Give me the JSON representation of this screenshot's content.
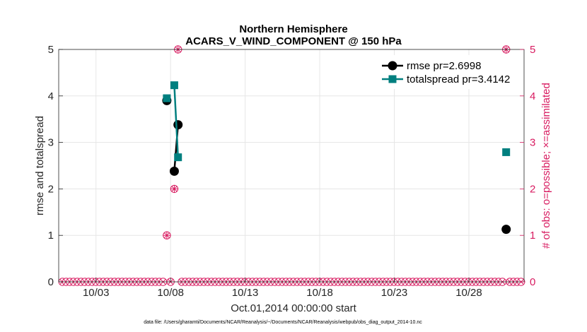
{
  "chart_data": {
    "type": "line",
    "title": [
      "Northern Hemisphere",
      "ACARS_V_WIND_COMPONENT @ 150 hPa"
    ],
    "xlabel": "Oct.01,2014 00:00:00 start",
    "ylabel": "rmse and totalspread",
    "y2label": "# of obs: o=possible; ×=assimilated",
    "footer": "data file: /Users/gharamti/Documents/NCAR/Reanalysis/~/Documents/NCAR/Reanalysis/webpub/obs_diag_output_2014-10.nc",
    "xlim": [
      0.5,
      31.7
    ],
    "ylim": [
      0,
      5
    ],
    "y2lim": [
      0,
      5
    ],
    "x_ticks": [
      3,
      8,
      13,
      18,
      23,
      28
    ],
    "x_tick_labels": [
      "10/03",
      "10/08",
      "10/13",
      "10/18",
      "10/23",
      "10/28"
    ],
    "y_ticks": [
      0,
      1,
      2,
      3,
      4,
      5
    ],
    "grid": true,
    "legend_position": "top-right",
    "series": [
      {
        "name": "rmse pr=2.6998",
        "color": "#000000",
        "marker": "circle",
        "segments": [
          [
            [
              7.75,
              3.9
            ]
          ],
          [
            [
              8.25,
              2.38
            ],
            [
              8.5,
              3.38
            ]
          ],
          [
            [
              30.5,
              1.13
            ]
          ]
        ]
      },
      {
        "name": "totalspread pr=3.4142",
        "color": "#007f7f",
        "marker": "square",
        "segments": [
          [
            [
              7.75,
              3.95
            ]
          ],
          [
            [
              8.25,
              4.23
            ],
            [
              8.5,
              2.68
            ]
          ],
          [
            [
              30.5,
              2.79
            ]
          ]
        ]
      }
    ],
    "obs_counts": {
      "color": "#d81b60",
      "x_start": 0.75,
      "x_step": 0.25,
      "n": 124,
      "nonzero": [
        {
          "x": 7.75,
          "possible": 1,
          "assimilated": 1
        },
        {
          "x": 8.25,
          "possible": 2,
          "assimilated": 2
        },
        {
          "x": 8.5,
          "possible": 5,
          "assimilated": 5
        },
        {
          "x": 30.5,
          "possible": 5,
          "assimilated": 5
        }
      ]
    }
  }
}
